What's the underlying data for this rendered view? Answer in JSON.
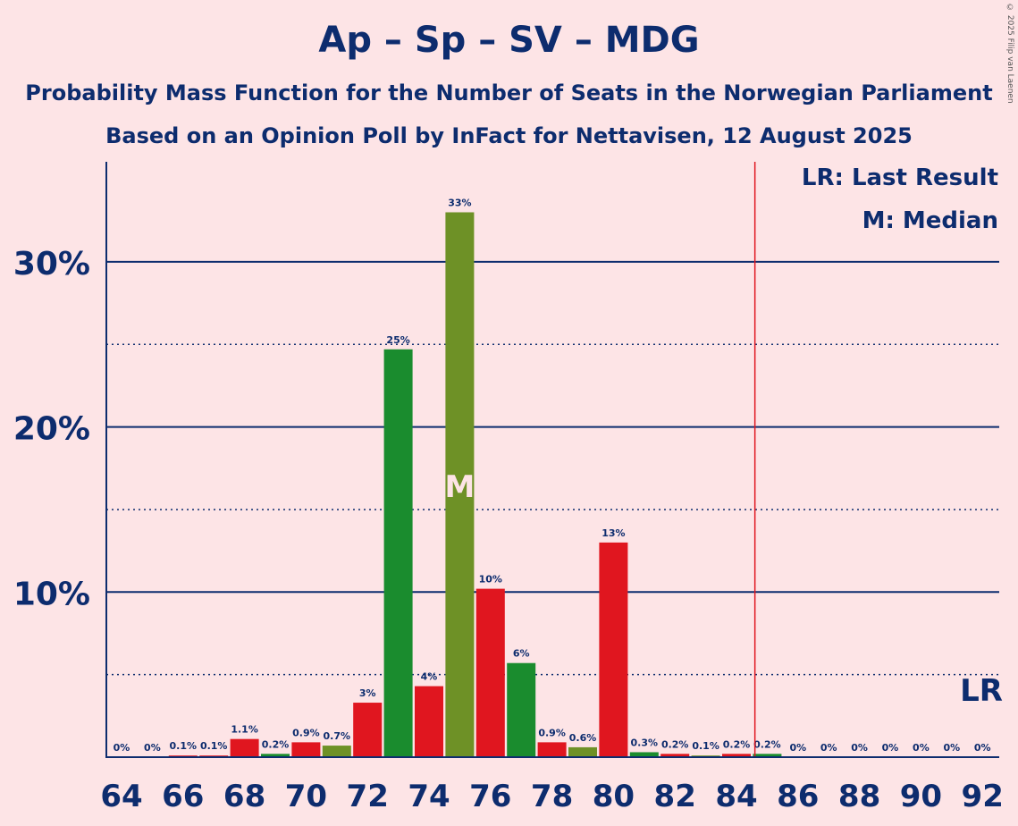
{
  "title": "Ap – Sp – SV – MDG",
  "subtitle": "Probability Mass Function for the Number of Seats in the Norwegian Parliament",
  "subtitle2": "Based on an Opinion Poll by InFact for Nettavisen, 12 August 2025",
  "credit": "© 2025 Filip van Laenen",
  "legend": {
    "lr": "LR: Last Result",
    "m": "M: Median"
  },
  "colors": {
    "red": "#e0161f",
    "green": "#1a8c2e",
    "olive": "#6e9126",
    "navy": "#0d2c6e",
    "background": "#fde4e6",
    "lr_line": "#e0161f"
  },
  "chart_data": {
    "type": "bar",
    "title": "Ap – Sp – SV – MDG",
    "xlabel": "",
    "ylabel": "",
    "x": [
      64,
      65,
      66,
      67,
      68,
      69,
      70,
      71,
      72,
      73,
      74,
      75,
      76,
      77,
      78,
      79,
      80,
      81,
      82,
      83,
      84,
      85,
      86,
      87,
      88,
      89,
      90,
      91,
      92
    ],
    "values": [
      0,
      0,
      0.1,
      0.1,
      1.1,
      0.2,
      0.9,
      0.7,
      3.3,
      24.7,
      4.3,
      33.0,
      10.2,
      5.7,
      0.9,
      0.6,
      13.0,
      0.3,
      0.2,
      0.1,
      0.2,
      0.2,
      0,
      0,
      0,
      0,
      0,
      0,
      0
    ],
    "labels": [
      "0%",
      "0%",
      "0.1%",
      "0.1%",
      "1.1%",
      "0.2%",
      "0.9%",
      "0.7%",
      "3%",
      "25%",
      "4%",
      "33%",
      "10%",
      "6%",
      "0.9%",
      "0.6%",
      "13%",
      "0.3%",
      "0.2%",
      "0.1%",
      "0.2%",
      "0.2%",
      "0%",
      "0%",
      "0%",
      "0%",
      "0%",
      "0%",
      "0%"
    ],
    "bar_colors": [
      "red",
      "red",
      "red",
      "red",
      "red",
      "green",
      "red",
      "olive",
      "red",
      "green",
      "red",
      "olive",
      "red",
      "green",
      "red",
      "olive",
      "red",
      "green",
      "red",
      "olive",
      "red",
      "green",
      "red",
      "green",
      "red",
      "olive",
      "red",
      "green",
      "red"
    ],
    "x_ticks": [
      64,
      66,
      68,
      70,
      72,
      74,
      76,
      78,
      80,
      82,
      84,
      86,
      88,
      90,
      92
    ],
    "x_tick_labels": [
      "64",
      "66",
      "68",
      "70",
      "72",
      "74",
      "76",
      "78",
      "80",
      "82",
      "84",
      "86",
      "88",
      "90",
      "92"
    ],
    "y_ticks_major": [
      10,
      20,
      30
    ],
    "y_tick_labels": [
      "10%",
      "20%",
      "30%"
    ],
    "y_ticks_minor": [
      5,
      15,
      25
    ],
    "ylim": [
      0,
      36
    ],
    "median": 75,
    "median_label": "M",
    "last_result": 84.6,
    "last_result_label": "LR"
  }
}
